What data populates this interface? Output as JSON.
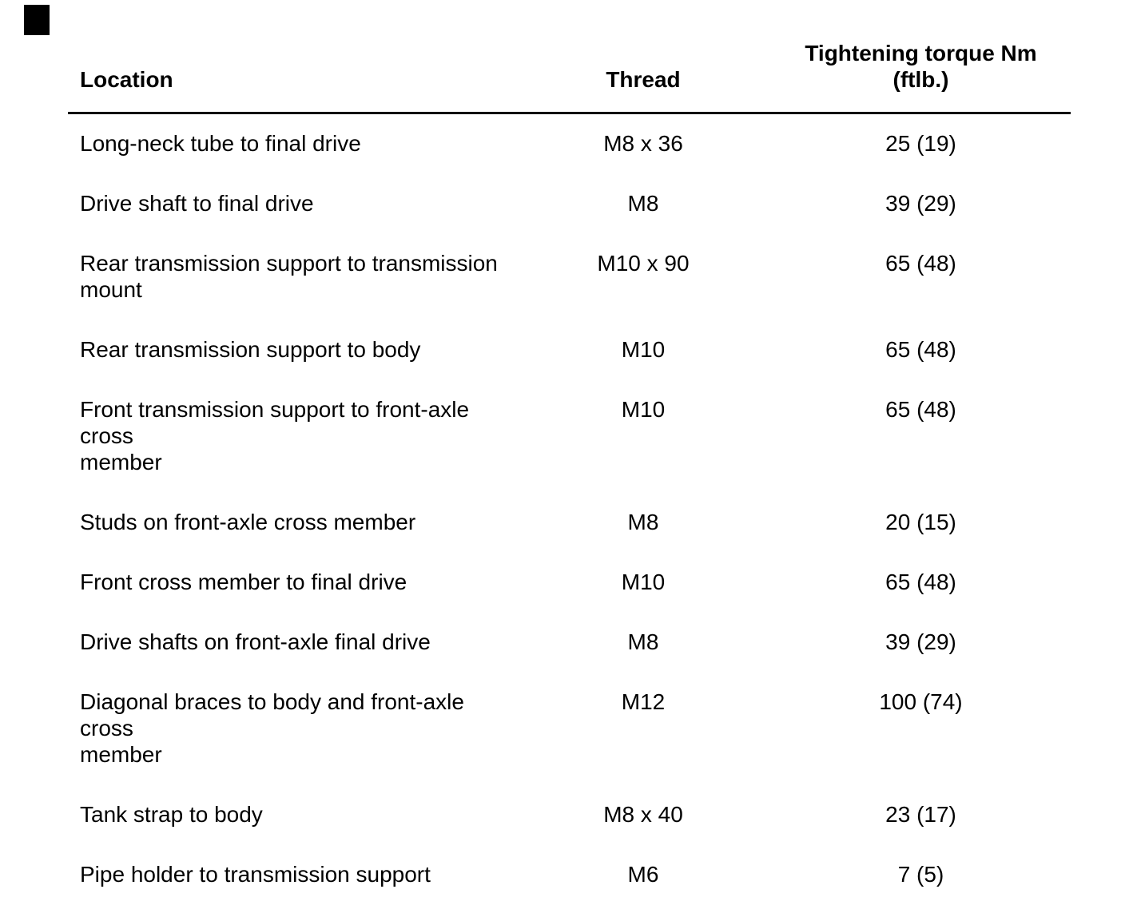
{
  "page": {
    "background_color": "#ffffff",
    "text_color": "#000000",
    "rule_color": "#000000"
  },
  "table": {
    "headers": {
      "location": "Location",
      "thread": "Thread",
      "torque_line1": "Tightening torque Nm",
      "torque_line2": "(ftlb.)"
    },
    "rows": [
      {
        "location": "Long-neck tube to final drive",
        "thread": "M8 x 36",
        "torque": "25 (19)"
      },
      {
        "location": "Drive shaft to final drive",
        "thread": "M8",
        "torque": "39 (29)"
      },
      {
        "location": "Rear transmission support to transmission\nmount",
        "thread": "M10 x 90",
        "torque": "65 (48)"
      },
      {
        "location": "Rear transmission support to body",
        "thread": "M10",
        "torque": "65 (48)"
      },
      {
        "location": "Front transmission support to front-axle cross\nmember",
        "thread": "M10",
        "torque": "65 (48)"
      },
      {
        "location": "Studs on front-axle cross member",
        "thread": "M8",
        "torque": "20 (15)"
      },
      {
        "location": "Front cross member to final drive",
        "thread": "M10",
        "torque": "65 (48)"
      },
      {
        "location": "Drive shafts on front-axle final drive",
        "thread": "M8",
        "torque": "39 (29)"
      },
      {
        "location": "Diagonal braces to body and front-axle cross\nmember",
        "thread": "M12",
        "torque": "100 (74)"
      },
      {
        "location": "Tank strap to body",
        "thread": "M8 x 40",
        "torque": "23 (17)"
      },
      {
        "location": "Pipe holder to transmission support",
        "thread": "M6",
        "torque": "7 (5)"
      }
    ]
  }
}
